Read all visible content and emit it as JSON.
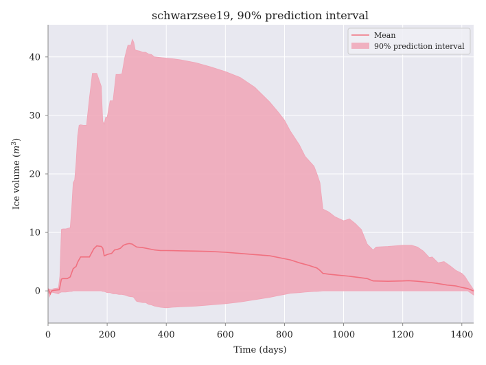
{
  "chart_data": {
    "type": "area",
    "title": "schwarzsee19, 90% prediction interval",
    "xlabel": "Time (days)",
    "ylabel_main": "Ice volume (",
    "ylabel_unit": "m",
    "ylabel_exp": "3",
    "ylabel_close": ")",
    "xlim": [
      0,
      1440
    ],
    "ylim": [
      -5.5,
      45.5
    ],
    "xticks": [
      0,
      200,
      400,
      600,
      800,
      1000,
      1200,
      1400
    ],
    "yticks": [
      0,
      10,
      20,
      30,
      40
    ],
    "grid": true,
    "legend_position": "upper right",
    "colors": {
      "mean": "#f0707f",
      "band": "#f0a4b6",
      "band_opacity": 0.85,
      "background": "#e8e8f0",
      "grid": "#ffffff",
      "axis": "#888888"
    },
    "series": [
      {
        "name": "Mean",
        "kind": "line",
        "x": [
          0,
          8,
          12,
          20,
          38,
          45,
          50,
          65,
          75,
          85,
          95,
          100,
          110,
          130,
          140,
          155,
          165,
          180,
          185,
          190,
          200,
          205,
          215,
          225,
          235,
          245,
          255,
          265,
          275,
          285,
          290,
          300,
          320,
          340,
          360,
          380,
          400,
          450,
          500,
          550,
          600,
          650,
          700,
          750,
          800,
          820,
          850,
          880,
          910,
          920,
          930,
          950,
          970,
          1000,
          1020,
          1050,
          1080,
          1100,
          1150,
          1200,
          1220,
          1250,
          1280,
          1300,
          1320,
          1350,
          1380,
          1400,
          1420,
          1440
        ],
        "y": [
          0.4,
          -0.5,
          0.0,
          0.1,
          0.2,
          2.0,
          2.1,
          2.1,
          2.4,
          3.8,
          4.2,
          4.9,
          5.8,
          5.8,
          5.8,
          7.2,
          7.7,
          7.6,
          7.3,
          6.0,
          6.2,
          6.3,
          6.4,
          7.0,
          7.1,
          7.3,
          7.8,
          8.0,
          8.1,
          8.0,
          7.8,
          7.5,
          7.4,
          7.2,
          7.0,
          6.9,
          6.9,
          6.85,
          6.8,
          6.75,
          6.6,
          6.4,
          6.2,
          6.0,
          5.5,
          5.3,
          4.8,
          4.4,
          3.9,
          3.5,
          3.0,
          2.85,
          2.75,
          2.6,
          2.5,
          2.3,
          2.1,
          1.7,
          1.65,
          1.7,
          1.75,
          1.65,
          1.5,
          1.4,
          1.25,
          1.0,
          0.85,
          0.6,
          0.4,
          0.0
        ]
      },
      {
        "name": "90% prediction interval",
        "kind": "band",
        "x": [
          0,
          5,
          10,
          20,
          35,
          40,
          45,
          50,
          60,
          75,
          80,
          85,
          90,
          95,
          100,
          105,
          110,
          120,
          130,
          140,
          150,
          155,
          160,
          165,
          180,
          185,
          190,
          195,
          200,
          210,
          220,
          230,
          240,
          250,
          260,
          265,
          270,
          280,
          285,
          290,
          295,
          300,
          310,
          320,
          330,
          340,
          350,
          360,
          380,
          400,
          420,
          450,
          500,
          550,
          600,
          650,
          700,
          750,
          780,
          800,
          820,
          850,
          870,
          900,
          910,
          920,
          930,
          950,
          970,
          1000,
          1020,
          1040,
          1050,
          1060,
          1080,
          1100,
          1110,
          1150,
          1200,
          1230,
          1250,
          1270,
          1290,
          1300,
          1320,
          1340,
          1360,
          1380,
          1400,
          1410,
          1420,
          1440
        ],
        "upper": [
          0.2,
          0.3,
          0.2,
          0.4,
          0.5,
          2.5,
          10.5,
          10.6,
          10.6,
          10.8,
          14.0,
          18.5,
          19.0,
          22.0,
          26.5,
          28.3,
          28.4,
          28.3,
          28.3,
          33.0,
          37.2,
          37.2,
          37.2,
          37.2,
          35.0,
          29.0,
          28.5,
          29.7,
          29.7,
          32.5,
          32.5,
          37.0,
          37.0,
          37.1,
          40.0,
          41.0,
          42.0,
          42.0,
          43.0,
          42.5,
          41.2,
          41.1,
          41.0,
          40.8,
          40.8,
          40.5,
          40.4,
          40.0,
          39.9,
          39.8,
          39.7,
          39.5,
          39.0,
          38.3,
          37.5,
          36.5,
          34.8,
          32.3,
          30.5,
          29.2,
          27.3,
          25.0,
          23.0,
          21.3,
          20.0,
          18.5,
          14.0,
          13.5,
          12.7,
          12.0,
          12.3,
          11.5,
          11.0,
          10.5,
          8.0,
          7.0,
          7.5,
          7.6,
          7.8,
          7.8,
          7.5,
          6.8,
          5.7,
          5.8,
          4.8,
          5.0,
          4.3,
          3.5,
          3.0,
          2.5,
          1.7,
          0.2
        ],
        "lower": [
          0.2,
          -1.0,
          -0.2,
          -0.3,
          -0.5,
          -0.3,
          -0.2,
          -0.2,
          -0.2,
          -0.1,
          -0.1,
          0.0,
          0.0,
          0.0,
          0.0,
          0.0,
          0.0,
          0.0,
          0.0,
          0.0,
          0.0,
          0.0,
          0.0,
          0.0,
          0.0,
          -0.1,
          -0.1,
          -0.2,
          -0.3,
          -0.3,
          -0.5,
          -0.5,
          -0.6,
          -0.6,
          -0.7,
          -0.8,
          -0.9,
          -1.0,
          -1.0,
          -1.1,
          -1.5,
          -1.8,
          -1.9,
          -2.0,
          -2.0,
          -2.3,
          -2.4,
          -2.6,
          -2.8,
          -2.9,
          -2.8,
          -2.7,
          -2.6,
          -2.4,
          -2.2,
          -1.9,
          -1.5,
          -1.1,
          -0.8,
          -0.6,
          -0.4,
          -0.3,
          -0.2,
          -0.1,
          -0.1,
          -0.05,
          0.0,
          0.0,
          0.0,
          0.0,
          0.0,
          0.0,
          0.0,
          0.0,
          0.0,
          0.0,
          0.0,
          0.0,
          0.0,
          0.0,
          0.0,
          0.0,
          0.0,
          0.0,
          0.0,
          0.0,
          0.0,
          0.0,
          0.0,
          0.0,
          0.0,
          -0.7
        ]
      }
    ]
  }
}
